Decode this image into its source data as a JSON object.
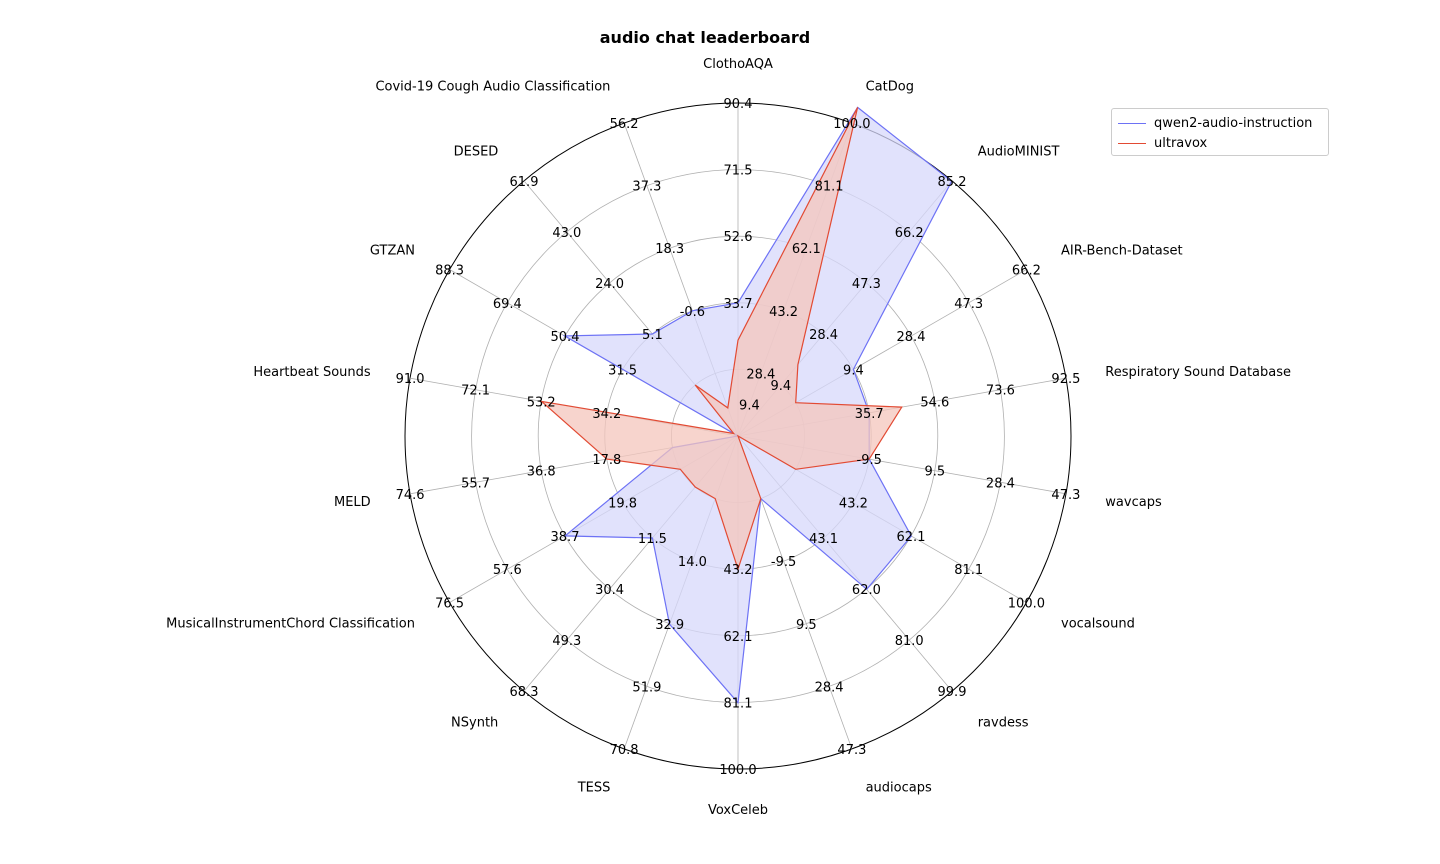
{
  "chart_data": {
    "type": "radar",
    "title": "audio chat leaderboard",
    "categories": [
      "CatDog",
      "AudioMINIST",
      "AIR-Bench-Dataset",
      "Respiratory Sound Database",
      "wavcaps",
      "vocalsound",
      "ravdess",
      "audiocaps",
      "VoxCeleb",
      "TESS",
      "NSynth",
      "MusicalInstrumentChord Classification",
      "MELD",
      "Heartbeat Sounds",
      "GTZAN",
      "DESED",
      "Covid-19 Cough Audio Classification",
      "ClothoAQA"
    ],
    "tick_labels": [
      [
        "9.4",
        "28.4",
        "43.2",
        "62.1",
        "81.1",
        "100.0"
      ],
      [
        "9.4",
        "28.4",
        "47.3",
        "66.2",
        "85.2"
      ],
      [
        "9.4",
        "28.4",
        "47.3",
        "66.2"
      ],
      [
        "35.7",
        "54.6",
        "73.6",
        "92.5"
      ],
      [
        "-9.5",
        "9.5",
        "28.4",
        "47.3"
      ],
      [
        "43.2",
        "62.1",
        "81.1",
        "100.0"
      ],
      [
        "43.1",
        "62.0",
        "81.0",
        "99.9"
      ],
      [
        "-9.5",
        "9.5",
        "28.4",
        "47.3"
      ],
      [
        "43.2",
        "62.1",
        "81.1",
        "100.0"
      ],
      [
        "14.0",
        "32.9",
        "51.9",
        "70.8"
      ],
      [
        "11.5",
        "30.4",
        "49.3",
        "68.3"
      ],
      [
        "19.8",
        "38.7",
        "57.6",
        "76.5"
      ],
      [
        "17.8",
        "36.8",
        "55.7",
        "74.6"
      ],
      [
        "34.2",
        "53.2",
        "72.1",
        "91.0"
      ],
      [
        "31.5",
        "50.4",
        "69.4",
        "88.3"
      ],
      [
        "5.1",
        "24.0",
        "43.0",
        "61.9"
      ],
      [
        "-0.6",
        "18.3",
        "37.3",
        "56.2"
      ],
      [
        "33.7",
        "52.6",
        "71.5",
        "90.4"
      ]
    ],
    "series": [
      {
        "name": "qwen2-audio-instruction",
        "color": "#6d72f5",
        "fill": "#d7d8fb",
        "values": [
          100.0,
          85.2,
          28.4,
          54.6,
          9.5,
          81.1,
          81.0,
          -9.5,
          100.0,
          51.9,
          30.4,
          57.6,
          17.8,
          14.0,
          69.4,
          24.0,
          18.3,
          52.6
        ]
      },
      {
        "name": "ultravox",
        "color": "#e24a33",
        "fill": "#f4c6bc",
        "values": [
          100.0,
          17.0,
          9.4,
          64.0,
          9.5,
          43.2,
          13.0,
          -9.5,
          62.1,
          14.0,
          11.5,
          19.8,
          36.8,
          72.1,
          14.0,
          5.1,
          -11.0,
          42.0
        ]
      }
    ],
    "legend_position": "top-right"
  }
}
